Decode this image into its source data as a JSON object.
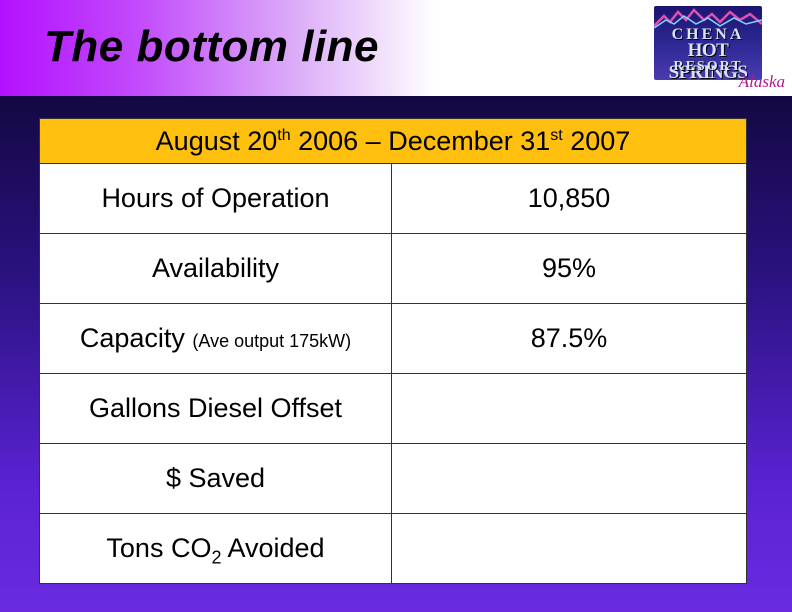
{
  "slide": {
    "title": "The bottom line"
  },
  "logo": {
    "line1": "CHENA",
    "line2": "HOT SPRINGS",
    "line3": "RESORT",
    "line4": "Alaska"
  },
  "table": {
    "header": {
      "month1": "August 20",
      "sup1": "th",
      "year1": " 2006 – December 31",
      "sup2": "st",
      "year2": " 2007"
    },
    "rows": [
      {
        "label": "Hours of Operation",
        "value": "10,850"
      },
      {
        "label": "Availability",
        "value": "95%"
      },
      {
        "label": "Capacity",
        "note": "(Ave output 175kW)",
        "value": "87.5%"
      },
      {
        "label": "Gallons Diesel Offset",
        "value": ""
      },
      {
        "label": "$ Saved",
        "value": ""
      },
      {
        "label_pre": "Tons CO",
        "label_sub": "2",
        "label_post": " Avoided",
        "value": ""
      }
    ]
  },
  "colors": {
    "header_fill": "#ffbf0e",
    "background_top": "#140842",
    "background_bottom": "#6a2be0",
    "banner_accent": "#b410ff",
    "alaska_text": "#b2178f"
  }
}
